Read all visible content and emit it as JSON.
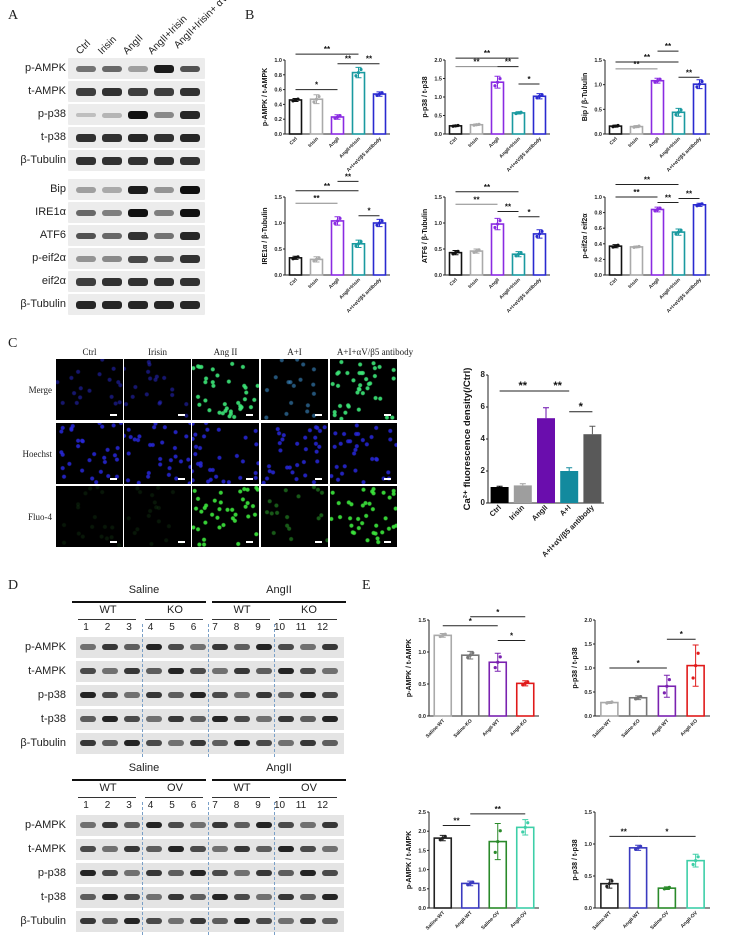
{
  "figure": {
    "panel_labels": {
      "A": "A",
      "B": "B",
      "C": "C",
      "D": "D",
      "E": "E"
    }
  },
  "panel_a": {
    "lanes": [
      "Ctrl",
      "Irisin",
      "AngII",
      "AngII+Irisin",
      "AngII+Irisin+ αV/β5 antibody"
    ],
    "rows": [
      "p-AMPK",
      "t-AMPK",
      "p-p38",
      "t-p38",
      "β-Tubulin",
      "Bip",
      "IRE1α",
      "ATF6",
      "p-eif2α",
      "eif2α",
      "β-Tubulin"
    ]
  },
  "panel_c": {
    "columns": [
      "Ctrl",
      "Irisin",
      "Ang II",
      "A+I",
      "A+I+αV/β5 antibody"
    ],
    "rows": [
      "Merge",
      "Hoechst",
      "Fluo-4"
    ]
  },
  "panel_d": {
    "top": {
      "conditions": [
        "Saline",
        "AngII"
      ],
      "genotypes": [
        "WT",
        "KO",
        "WT",
        "KO"
      ],
      "lanes": [
        "1",
        "2",
        "3",
        "4",
        "5",
        "6",
        "7",
        "8",
        "9",
        "10",
        "11",
        "12"
      ],
      "rows": [
        "p-AMPK",
        "t-AMPK",
        "p-p38",
        "t-p38",
        "β-Tubulin"
      ]
    },
    "bottom": {
      "conditions": [
        "Saline",
        "AngII"
      ],
      "genotypes": [
        "WT",
        "OV",
        "WT",
        "OV"
      ],
      "lanes": [
        "1",
        "2",
        "3",
        "4",
        "5",
        "6",
        "7",
        "8",
        "9",
        "10",
        "11",
        "12"
      ],
      "rows": [
        "p-AMPK",
        "t-AMPK",
        "p-p38",
        "t-p38",
        "β-Tubulin"
      ]
    }
  },
  "chart_data": [
    {
      "id": "B1",
      "type": "bar",
      "ylabel": "p-AMPK / t-AMPK",
      "categories": [
        "Ctrl",
        "Irisin",
        "AngII",
        "AngII+Irisin",
        "A+I+αV/β5 antibody"
      ],
      "values": [
        0.46,
        0.47,
        0.23,
        0.83,
        0.54
      ],
      "errors": [
        0.02,
        0.06,
        0.03,
        0.07,
        0.03
      ],
      "ylim": [
        0,
        1.0
      ],
      "yticks": [
        "0.0",
        "0.2",
        "0.4",
        "0.6",
        "0.8",
        "1.0"
      ],
      "colors": [
        "#111111",
        "#aaaaaa",
        "#8a2be2",
        "#1a9aa0",
        "#2a2ad0"
      ],
      "significance": [
        "**",
        "*",
        "**",
        "**"
      ]
    },
    {
      "id": "B2",
      "type": "bar",
      "ylabel": "p-p38 / t-p38",
      "categories": [
        "Ctrl",
        "Irisin",
        "AngII",
        "AngII+Irisin",
        "A+I+αV/β5 antibody"
      ],
      "values": [
        0.22,
        0.25,
        1.4,
        0.57,
        1.02
      ],
      "errors": [
        0.02,
        0.02,
        0.16,
        0.03,
        0.07
      ],
      "ylim": [
        0,
        2.0
      ],
      "yticks": [
        "0.0",
        "0.5",
        "1.0",
        "1.5",
        "2.0"
      ],
      "colors": [
        "#111111",
        "#aaaaaa",
        "#8a2be2",
        "#1a9aa0",
        "#2a2ad0"
      ],
      "significance": [
        "**",
        "**",
        "**",
        "*"
      ]
    },
    {
      "id": "B3",
      "type": "bar",
      "ylabel": "Bip / β-Tubulin",
      "categories": [
        "Ctrl",
        "Irisin",
        "AngII",
        "AngII+Irisin",
        "A+I+αV/β5 antibody"
      ],
      "values": [
        0.16,
        0.15,
        1.08,
        0.44,
        1.01
      ],
      "errors": [
        0.02,
        0.02,
        0.05,
        0.08,
        0.09
      ],
      "ylim": [
        0,
        1.5
      ],
      "yticks": [
        "0.0",
        "0.5",
        "1.0",
        "1.5"
      ],
      "colors": [
        "#111111",
        "#aaaaaa",
        "#8a2be2",
        "#1a9aa0",
        "#2a2ad0"
      ],
      "significance": [
        "**",
        "**",
        "**",
        "**"
      ]
    },
    {
      "id": "B4",
      "type": "bar",
      "ylabel": "IRE1α / β-Tubulin",
      "categories": [
        "Ctrl",
        "Irisin",
        "AngII",
        "AngII+Irisin",
        "A+I+αV/β5 antibody"
      ],
      "values": [
        0.33,
        0.3,
        1.04,
        0.6,
        1.0
      ],
      "errors": [
        0.03,
        0.05,
        0.08,
        0.07,
        0.07
      ],
      "ylim": [
        0,
        1.5
      ],
      "yticks": [
        "0.0",
        "0.5",
        "1.0",
        "1.5"
      ],
      "colors": [
        "#111111",
        "#aaaaaa",
        "#8a2be2",
        "#1a9aa0",
        "#2a2ad0"
      ],
      "significance": [
        "**",
        "**",
        "**",
        "*"
      ]
    },
    {
      "id": "B5",
      "type": "bar",
      "ylabel": "ATF6 / β-Tubulin",
      "categories": [
        "Ctrl",
        "Irisin",
        "AngII",
        "AngII+Irisin",
        "A+I+αV/β5 antibody"
      ],
      "values": [
        0.43,
        0.46,
        0.98,
        0.4,
        0.79
      ],
      "errors": [
        0.04,
        0.04,
        0.11,
        0.05,
        0.08
      ],
      "ylim": [
        0,
        1.5
      ],
      "yticks": [
        "0.0",
        "0.5",
        "1.0",
        "1.5"
      ],
      "colors": [
        "#111111",
        "#aaaaaa",
        "#8a2be2",
        "#1a9aa0",
        "#2a2ad0"
      ],
      "significance": [
        "**",
        "**",
        "**",
        "*"
      ]
    },
    {
      "id": "B6",
      "type": "bar",
      "ylabel": "p-eif2α / eif2α",
      "categories": [
        "Ctrl",
        "Irisin",
        "AngII",
        "AngII+Irisin",
        "A+I+αV/β5 antibody"
      ],
      "values": [
        0.37,
        0.36,
        0.84,
        0.55,
        0.9
      ],
      "errors": [
        0.02,
        0.01,
        0.03,
        0.04,
        0.02
      ],
      "ylim": [
        0,
        1.0
      ],
      "yticks": [
        "0.0",
        "0.2",
        "0.4",
        "0.6",
        "0.8",
        "1.0"
      ],
      "colors": [
        "#111111",
        "#aaaaaa",
        "#8a2be2",
        "#1a9aa0",
        "#2a2ad0"
      ],
      "significance": [
        "**",
        "**",
        "**",
        "**"
      ]
    },
    {
      "id": "C",
      "type": "bar",
      "ylabel": "Ca²⁺ fluorescence density(/Ctrl)",
      "categories": [
        "Ctrl",
        "Irisin",
        "AngII",
        "A+I",
        "A+I+αV/β5 antibody"
      ],
      "values": [
        1.0,
        1.1,
        5.3,
        2.0,
        4.3
      ],
      "errors": [
        0.05,
        0.1,
        0.65,
        0.2,
        0.5
      ],
      "ylim": [
        0,
        8
      ],
      "yticks": [
        "0",
        "2",
        "4",
        "6",
        "8"
      ],
      "colors": [
        "#000000",
        "#9e9e9e",
        "#6a0dad",
        "#138a9e",
        "#595959"
      ],
      "filled": true,
      "significance": [
        "**",
        "**",
        "*"
      ]
    },
    {
      "id": "E1",
      "type": "bar",
      "ylabel": "p-AMPK / t-AMPK",
      "categories": [
        "Saline-WT",
        "Saline-KO",
        "AngII-WT",
        "AngII-KO"
      ],
      "values": [
        1.26,
        0.95,
        0.84,
        0.51
      ],
      "errors": [
        0.03,
        0.06,
        0.14,
        0.04
      ],
      "ylim": [
        0,
        1.5
      ],
      "yticks": [
        "0.0",
        "0.5",
        "1.0",
        "1.5"
      ],
      "colors": [
        "#aaaaaa",
        "#777777",
        "#7a22b0",
        "#e01a1a"
      ],
      "significance": [
        "*",
        "*",
        "*"
      ]
    },
    {
      "id": "E2",
      "type": "bar",
      "ylabel": "p-p38 / t-p38",
      "categories": [
        "Saline-WT",
        "Saline-KO",
        "AngII-WT",
        "AngII-KO"
      ],
      "values": [
        0.28,
        0.38,
        0.62,
        1.05
      ],
      "errors": [
        0.02,
        0.04,
        0.23,
        0.43
      ],
      "ylim": [
        0,
        2.0
      ],
      "yticks": [
        "0.0",
        "0.5",
        "1.0",
        "1.5",
        "2.0"
      ],
      "colors": [
        "#aaaaaa",
        "#777777",
        "#7a22b0",
        "#e01a1a"
      ],
      "significance": [
        "*",
        "*"
      ]
    },
    {
      "id": "E3",
      "type": "bar",
      "ylabel": "p-AMPK / t-AMPK",
      "categories": [
        "Saline-WT",
        "AngII-WT",
        "Saline-OV",
        "AngII-OV"
      ],
      "values": [
        1.82,
        0.64,
        1.73,
        2.1
      ],
      "errors": [
        0.07,
        0.06,
        0.47,
        0.2
      ],
      "ylim": [
        0,
        2.5
      ],
      "yticks": [
        "0.0",
        "0.5",
        "1.0",
        "1.5",
        "2.0",
        "2.5"
      ],
      "colors": [
        "#222222",
        "#3a3ac0",
        "#2a8a2a",
        "#3ecfa8"
      ],
      "significance": [
        "**",
        "**"
      ]
    },
    {
      "id": "E4",
      "type": "bar",
      "ylabel": "p-p38 / t-p38",
      "categories": [
        "Saline-WT",
        "AngII-WT",
        "Saline-OV",
        "AngII-OV"
      ],
      "values": [
        0.38,
        0.94,
        0.31,
        0.74
      ],
      "errors": [
        0.07,
        0.04,
        0.02,
        0.1
      ],
      "ylim": [
        0,
        1.5
      ],
      "yticks": [
        "0.0",
        "0.5",
        "1.0",
        "1.5"
      ],
      "colors": [
        "#222222",
        "#3a3ac0",
        "#2a8a2a",
        "#3ecfa8"
      ],
      "significance": [
        "**",
        "*"
      ]
    }
  ]
}
